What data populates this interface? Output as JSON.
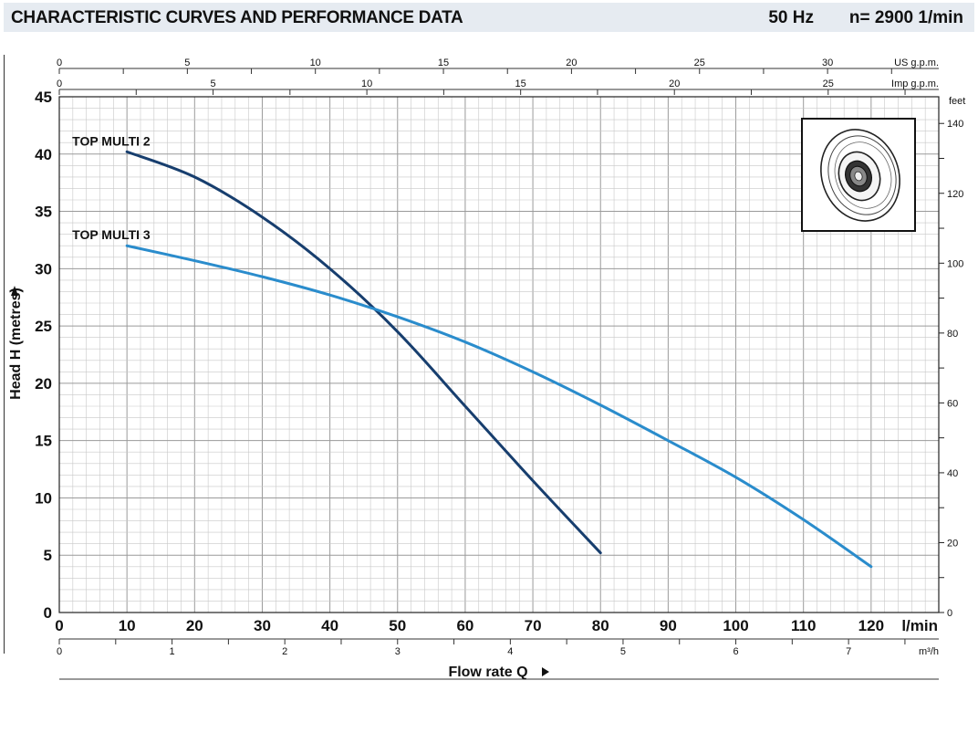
{
  "header": {
    "title": "CHARACTERISTIC CURVES AND PERFORMANCE DATA",
    "frequency": "50 Hz",
    "speed": "n= 2900  1/min"
  },
  "chart_data": {
    "type": "line",
    "title": "CHARACTERISTIC CURVES AND PERFORMANCE DATA",
    "xlabel": "Flow rate  Q",
    "x_unit": "l/min",
    "ylabel": "Head H (metres)",
    "xlim": [
      0,
      130
    ],
    "ylim": [
      0,
      45
    ],
    "grid": true,
    "x_ticks": [
      0,
      10,
      20,
      30,
      40,
      50,
      60,
      70,
      80,
      90,
      100,
      110,
      120
    ],
    "y_ticks": [
      0,
      5,
      10,
      15,
      20,
      25,
      30,
      35,
      40,
      45
    ],
    "secondary_axes": {
      "feet": {
        "label": "feet",
        "ticks": [
          0,
          20,
          40,
          60,
          80,
          100,
          120,
          140
        ]
      },
      "us_gpm": {
        "label": "US g.p.m.",
        "ticks": [
          0,
          5,
          10,
          15,
          20,
          25,
          30
        ]
      },
      "imp_gpm": {
        "label": "Imp g.p.m.",
        "ticks": [
          0,
          5,
          10,
          15,
          20,
          25
        ]
      },
      "m3h": {
        "label": "m³/h",
        "ticks": [
          0,
          1,
          2,
          3,
          4,
          5,
          6,
          7
        ]
      }
    },
    "series": [
      {
        "name": "TOP MULTI 2",
        "color": "#173e6e",
        "x": [
          10,
          20,
          30,
          40,
          50,
          60,
          70,
          80
        ],
        "y": [
          40.2,
          38.0,
          34.5,
          30.0,
          24.5,
          18.0,
          11.5,
          5.2
        ]
      },
      {
        "name": "TOP MULTI 3",
        "color": "#2a8ccc",
        "x": [
          10,
          20,
          30,
          40,
          50,
          60,
          70,
          80,
          90,
          100,
          110,
          120
        ],
        "y": [
          32.0,
          30.7,
          29.3,
          27.7,
          25.8,
          23.6,
          21.0,
          18.1,
          15.0,
          11.8,
          8.1,
          4.0
        ]
      }
    ]
  }
}
